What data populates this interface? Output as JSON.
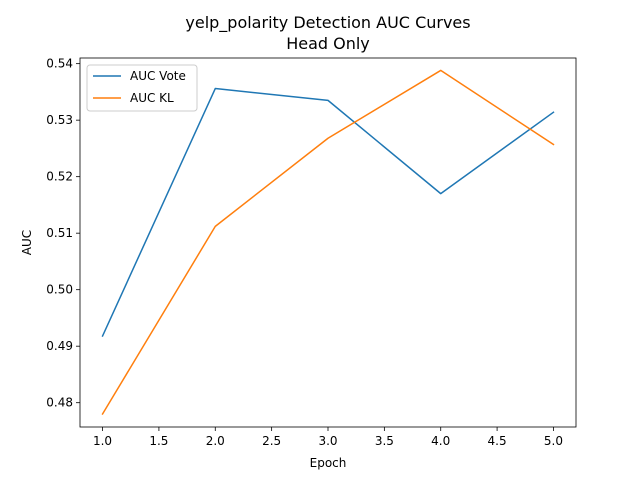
{
  "chart_data": {
    "type": "line",
    "title": "yelp_polarity Detection AUC Curves",
    "subtitle": "Head Only",
    "xlabel": "Epoch",
    "ylabel": "AUC",
    "x": [
      1,
      2,
      3,
      4,
      5
    ],
    "xlim": [
      0.8,
      5.2
    ],
    "ylim": [
      0.4757,
      0.541
    ],
    "xticks": [
      "1.0",
      "1.5",
      "2.0",
      "2.5",
      "3.0",
      "3.5",
      "4.0",
      "4.5",
      "5.0"
    ],
    "yticks": [
      "0.48",
      "0.49",
      "0.50",
      "0.51",
      "0.52",
      "0.53",
      "0.54"
    ],
    "grid": false,
    "legend": "top-left",
    "series": [
      {
        "name": "AUC Vote",
        "color": "#1f77b4",
        "values": [
          0.4918,
          0.5356,
          0.5335,
          0.517,
          0.5314
        ]
      },
      {
        "name": "AUC KL",
        "color": "#ff7f0e",
        "values": [
          0.478,
          0.5112,
          0.5268,
          0.5388,
          0.5257
        ]
      }
    ]
  }
}
